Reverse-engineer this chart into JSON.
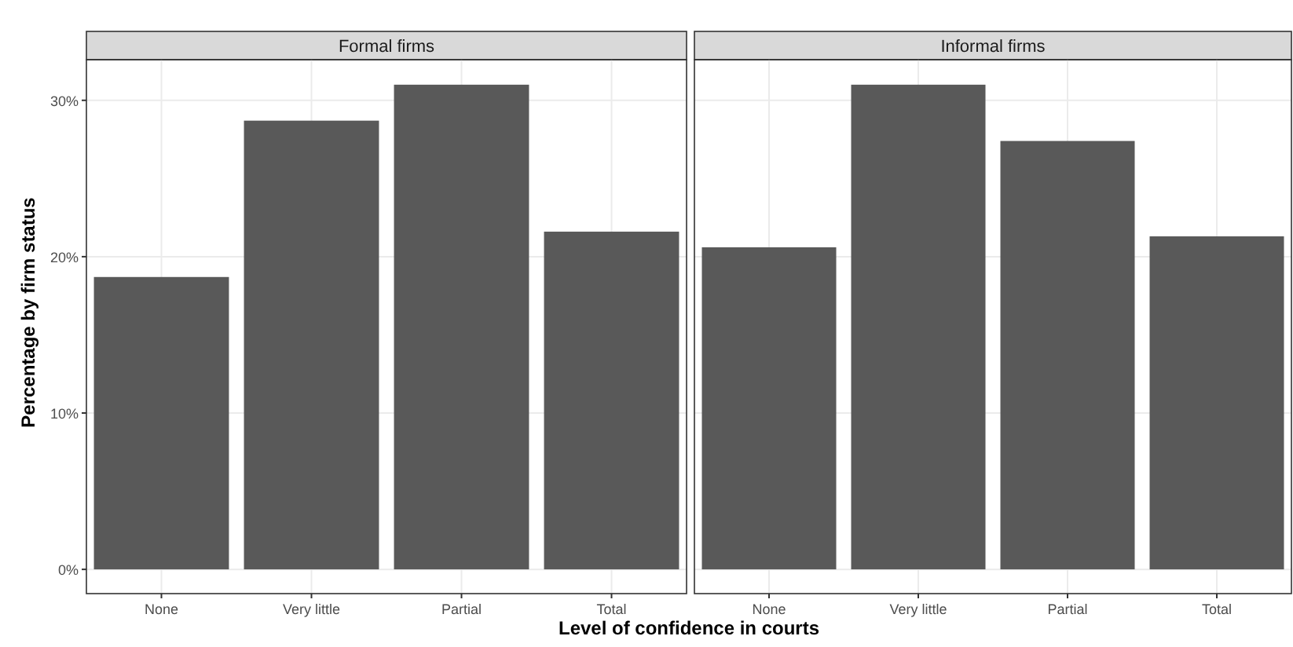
{
  "chart_data": [
    {
      "type": "bar",
      "title": "Formal firms",
      "ylabel": "Percentage by firm status",
      "xlabel": "Level of confidence in courts",
      "categories": [
        "None",
        "Very little",
        "Partial",
        "Total"
      ],
      "values": [
        18.7,
        28.7,
        31.0,
        21.6
      ],
      "color": "#595959",
      "ylim": [
        -1.55,
        32.6
      ],
      "yticks": [
        {
          "value": 0,
          "label": "0%"
        },
        {
          "value": 10,
          "label": "10%"
        },
        {
          "value": 20,
          "label": "20%"
        },
        {
          "value": 30,
          "label": "30%"
        }
      ],
      "grid": true
    },
    {
      "type": "bar",
      "title": "Informal firms",
      "categories": [
        "None",
        "Very little",
        "Partial",
        "Total"
      ],
      "values": [
        20.6,
        31.0,
        27.4,
        21.3
      ],
      "color": "#595959",
      "ylim": [
        -1.55,
        32.6
      ],
      "yticks": [
        {
          "value": 0,
          "label": null
        },
        {
          "value": 10,
          "label": null
        },
        {
          "value": 20,
          "label": null
        },
        {
          "value": 30,
          "label": null
        }
      ],
      "grid": true,
      "tick_labels": "x"
    }
  ]
}
